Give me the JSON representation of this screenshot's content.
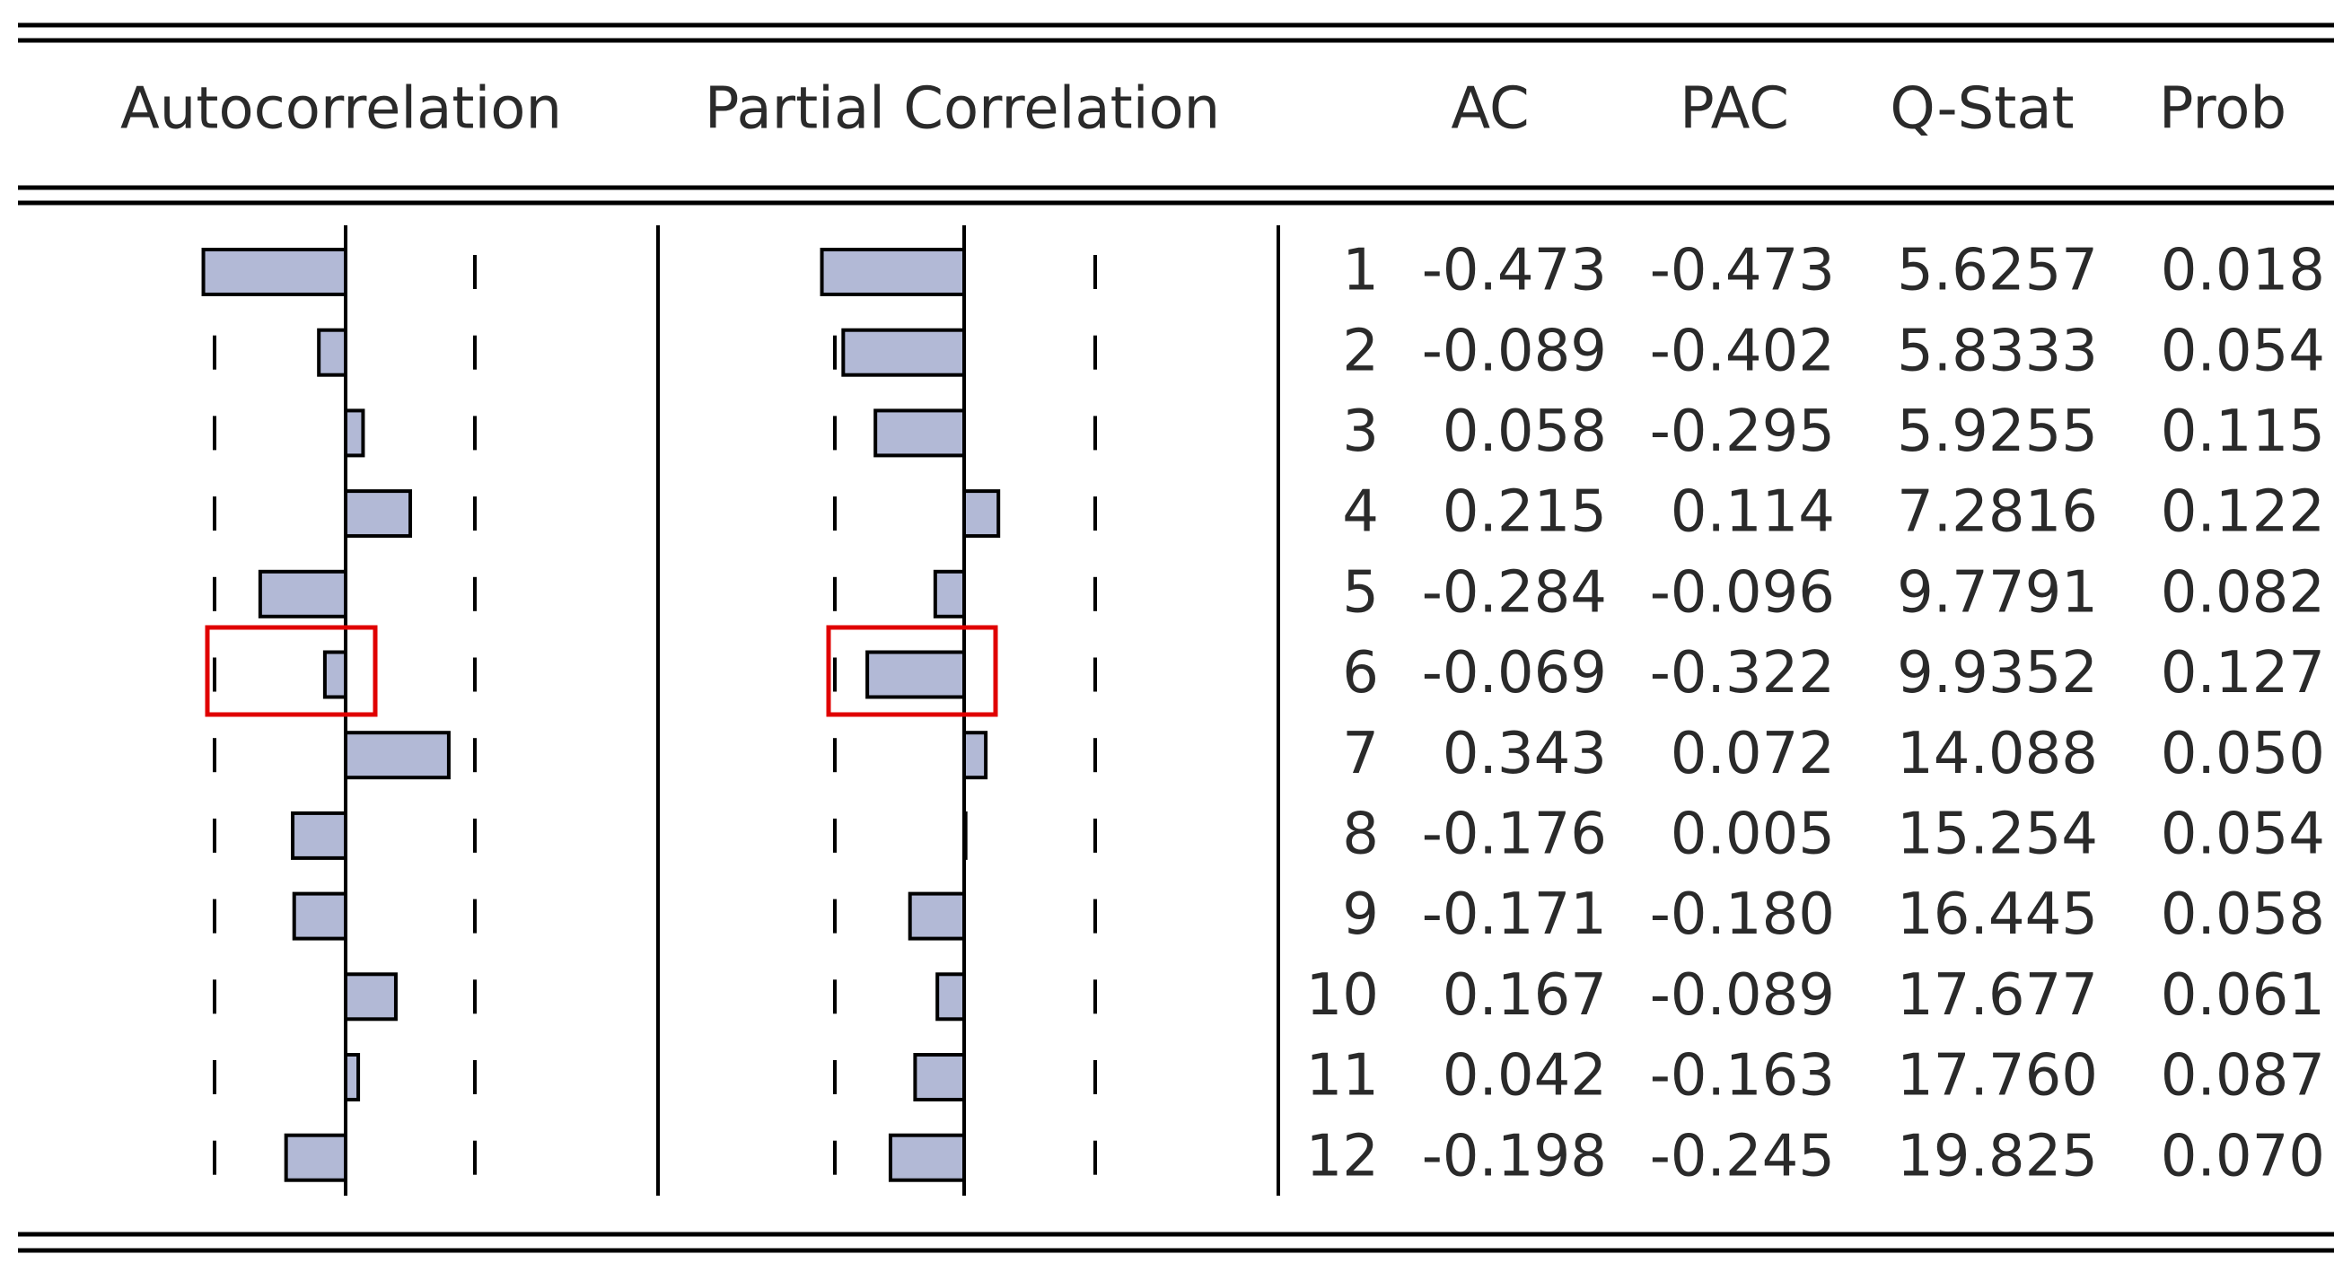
{
  "header": {
    "autocorrelation": "Autocorrelation",
    "partial_correlation": "Partial Correlation",
    "ac": "AC",
    "pac": "PAC",
    "qstat": "Q-Stat",
    "prob": "Prob"
  },
  "table": {
    "rows": [
      {
        "lag": 1,
        "ac": -0.473,
        "pac": -0.473,
        "qstat": 5.6257,
        "prob": 0.018
      },
      {
        "lag": 2,
        "ac": -0.089,
        "pac": -0.402,
        "qstat": 5.8333,
        "prob": 0.054
      },
      {
        "lag": 3,
        "ac": 0.058,
        "pac": -0.295,
        "qstat": 5.9255,
        "prob": 0.115
      },
      {
        "lag": 4,
        "ac": 0.215,
        "pac": 0.114,
        "qstat": 7.2816,
        "prob": 0.122
      },
      {
        "lag": 5,
        "ac": -0.284,
        "pac": -0.096,
        "qstat": 9.7791,
        "prob": 0.082
      },
      {
        "lag": 6,
        "ac": -0.069,
        "pac": -0.322,
        "qstat": 9.9352,
        "prob": 0.127
      },
      {
        "lag": 7,
        "ac": 0.343,
        "pac": 0.072,
        "qstat": 14.088,
        "prob": {
          "value": 0.05,
          "label": "0.050"
        }
      },
      {
        "lag": 8,
        "ac": -0.176,
        "pac": 0.005,
        "qstat": 15.254,
        "prob": 0.054
      },
      {
        "lag": 9,
        "ac": -0.171,
        "pac": {
          "value": -0.18,
          "label": "-0.180"
        },
        "qstat": 16.445,
        "prob": 0.058
      },
      {
        "lag": 10,
        "ac": 0.167,
        "pac": -0.089,
        "qstat": 17.677,
        "prob": 0.061
      },
      {
        "lag": 11,
        "ac": 0.042,
        "pac": -0.163,
        "qstat": {
          "value": 17.76,
          "label": "17.760"
        },
        "prob": 0.087
      },
      {
        "lag": 12,
        "ac": -0.198,
        "pac": -0.245,
        "qstat": 19.825,
        "prob": {
          "value": 0.07,
          "label": "0.070"
        }
      }
    ]
  }
}
